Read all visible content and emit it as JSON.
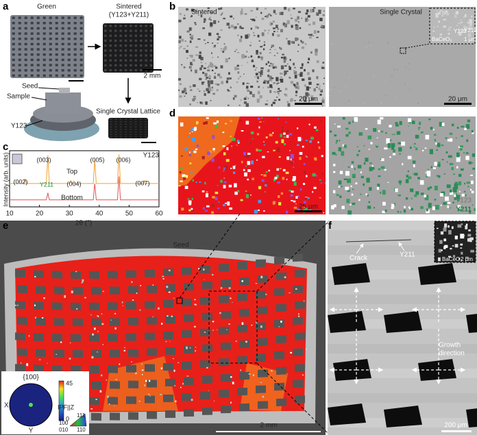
{
  "panel_labels": [
    "a",
    "b",
    "c",
    "d",
    "e",
    "f"
  ],
  "a": {
    "green": "Green",
    "sintered": "Sintered",
    "sintered_phases": "(Y123+Y211)",
    "scale": "2 mm",
    "single_crystal": "Single Crystal Lattice",
    "seed": "Seed",
    "sample": "Sample",
    "y123": "Y123"
  },
  "b": {
    "left": "Sintered",
    "right": "Single Crystal",
    "scale_left": "20 μm",
    "scale_right": "20 μm",
    "inset_y123": "Y123",
    "inset_y211": "Y211",
    "inset_baceo3": "BaCeO₃",
    "inset_scale": "1 μm"
  },
  "c": {
    "type": "line",
    "title": "Y123",
    "x_label": "2θ (°)",
    "y_label": "Intensity (arb. units)",
    "xlim": [
      10,
      60
    ],
    "xticks": [
      10,
      20,
      30,
      40,
      50,
      60
    ],
    "ylim": [
      0,
      12
    ],
    "series": [
      {
        "name": "Top",
        "color": "#f0a030",
        "x": [
          10,
          14.8,
          15.2,
          15.6,
          22.3,
          22.8,
          23.3,
          30.1,
          30.5,
          30.9,
          38,
          38.5,
          39,
          46.1,
          46.6,
          47.1,
          54.6,
          55,
          55.4,
          60
        ],
        "values": [
          5,
          5,
          6,
          5,
          5,
          11,
          5,
          5,
          5.6,
          5,
          5,
          10,
          5,
          5,
          11.2,
          5,
          5,
          5.6,
          5,
          5
        ]
      },
      {
        "name": "Bottom",
        "color": "#e05050",
        "x": [
          10,
          22.3,
          22.8,
          23.3,
          38,
          38.5,
          39,
          46.1,
          46.6,
          47.1,
          60
        ],
        "values": [
          1.5,
          1.5,
          3,
          1.5,
          1.5,
          5,
          1.5,
          1.5,
          6.5,
          1.5,
          1.5
        ]
      }
    ],
    "annotations": [
      "(002)",
      "(003)",
      "(004)",
      "(005)",
      "(006)",
      "(007)",
      "Y211"
    ]
  },
  "d": {
    "scale": "25 μm",
    "y123": "Y123",
    "y211": "Y211"
  },
  "e": {
    "seed": "Seed",
    "scale": "2 mm",
    "pole": "{100}",
    "x": "X",
    "y": "Y",
    "colorbar_ticks": [
      45,
      0
    ],
    "ipf": "IPF||Z",
    "c100": "100",
    "c111": "111",
    "c010": "010",
    "c110": "110"
  },
  "f": {
    "crack": "Crack",
    "y211": "Y211",
    "growth": "Growth",
    "direction": "direction",
    "inset_baceo3": "BaCeO₃",
    "inset_scale": "2 μm",
    "scale": "200 μm"
  }
}
